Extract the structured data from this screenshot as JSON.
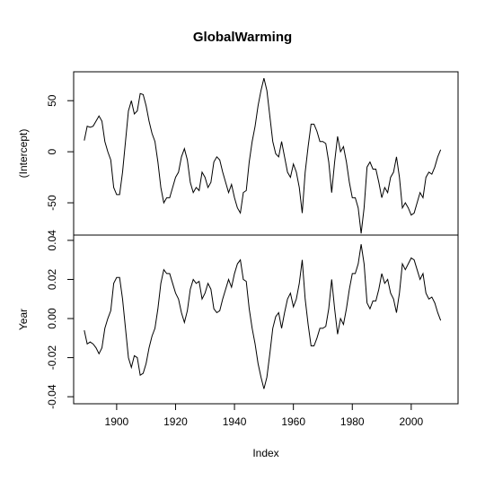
{
  "chart_data": {
    "type": "line",
    "title": "GlobalWarming",
    "x_label": "Index",
    "x": [
      1889,
      1890,
      1891,
      1892,
      1893,
      1894,
      1895,
      1896,
      1897,
      1898,
      1899,
      1900,
      1901,
      1902,
      1903,
      1904,
      1905,
      1906,
      1907,
      1908,
      1909,
      1910,
      1911,
      1912,
      1913,
      1914,
      1915,
      1916,
      1917,
      1918,
      1919,
      1920,
      1921,
      1922,
      1923,
      1924,
      1925,
      1926,
      1927,
      1928,
      1929,
      1930,
      1931,
      1932,
      1933,
      1934,
      1935,
      1936,
      1937,
      1938,
      1939,
      1940,
      1941,
      1942,
      1943,
      1944,
      1945,
      1946,
      1947,
      1948,
      1949,
      1950,
      1951,
      1952,
      1953,
      1954,
      1955,
      1956,
      1957,
      1958,
      1959,
      1960,
      1961,
      1962,
      1963,
      1964,
      1965,
      1966,
      1967,
      1968,
      1969,
      1970,
      1971,
      1972,
      1973,
      1974,
      1975,
      1976,
      1977,
      1978,
      1979,
      1980,
      1981,
      1982,
      1983,
      1984,
      1985,
      1986,
      1987,
      1988,
      1989,
      1990,
      1991,
      1992,
      1993,
      1994,
      1995,
      1996,
      1997,
      1998,
      1999,
      2000,
      2001,
      2002,
      2003,
      2004,
      2005,
      2006,
      2007,
      2008,
      2009,
      2010
    ],
    "xlim": [
      1885.4,
      2015.9
    ],
    "xticks": [
      1900,
      1920,
      1940,
      1960,
      1980,
      2000
    ],
    "color": "#000000",
    "panels": [
      {
        "y_label": "(Intercept)",
        "ylim": [
          -81.6,
          78.3
        ],
        "yticks": [
          -50,
          0,
          50
        ],
        "values": [
          11,
          25,
          24,
          25,
          30,
          35,
          30,
          10,
          0,
          -8,
          -35,
          -42,
          -42,
          -20,
          10,
          40,
          50,
          37,
          40,
          57,
          56,
          45,
          30,
          18,
          10,
          -10,
          -35,
          -50,
          -45,
          -45,
          -35,
          -25,
          -20,
          -5,
          3,
          -8,
          -30,
          -40,
          -35,
          -38,
          -20,
          -25,
          -35,
          -30,
          -10,
          -5,
          -8,
          -20,
          -30,
          -40,
          -32,
          -45,
          -55,
          -60,
          -40,
          -38,
          -10,
          10,
          25,
          45,
          60,
          72,
          60,
          35,
          10,
          -2,
          -5,
          10,
          -5,
          -20,
          -25,
          -12,
          -20,
          -35,
          -60,
          -20,
          5,
          27,
          27,
          20,
          10,
          10,
          8,
          -10,
          -40,
          -10,
          15,
          0,
          5,
          -10,
          -30,
          -45,
          -45,
          -55,
          -80,
          -55,
          -15,
          -10,
          -17,
          -17,
          -30,
          -45,
          -35,
          -40,
          -25,
          -20,
          -5,
          -25,
          -55,
          -50,
          -55,
          -62,
          -60,
          -50,
          -40,
          -45,
          -25,
          -20,
          -22,
          -15,
          -5,
          2
        ]
      },
      {
        "y_label": "Year",
        "ylim": [
          -0.0436,
          0.0427
        ],
        "yticks": [
          -0.04,
          -0.02,
          {
            "value": 0,
            "label": "0.00"
          },
          0.02,
          0.04
        ],
        "values": [
          -0.006,
          -0.013,
          -0.012,
          -0.013,
          -0.015,
          -0.018,
          -0.015,
          -0.005,
          0,
          0.004,
          0.018,
          0.021,
          0.021,
          0.01,
          -0.005,
          -0.02,
          -0.025,
          -0.019,
          -0.02,
          -0.029,
          -0.028,
          -0.023,
          -0.015,
          -0.009,
          -0.005,
          0.005,
          0.018,
          0.025,
          0.023,
          0.023,
          0.018,
          0.013,
          0.01,
          0.003,
          -0.002,
          0.004,
          0.015,
          0.02,
          0.018,
          0.019,
          0.01,
          0.013,
          0.018,
          0.015,
          0.005,
          0.003,
          0.004,
          0.01,
          0.015,
          0.02,
          0.016,
          0.023,
          0.028,
          0.03,
          0.02,
          0.019,
          0.005,
          -0.005,
          -0.013,
          -0.023,
          -0.03,
          -0.036,
          -0.03,
          -0.018,
          -0.005,
          0.001,
          0.003,
          -0.005,
          0.003,
          0.01,
          0.013,
          0.006,
          0.01,
          0.018,
          0.03,
          0.01,
          -0.003,
          -0.014,
          -0.014,
          -0.01,
          -0.005,
          -0.005,
          -0.004,
          0.005,
          0.02,
          0.005,
          -0.008,
          0,
          -0.003,
          0.005,
          0.015,
          0.023,
          0.023,
          0.028,
          0.038,
          0.028,
          0.008,
          0.005,
          0.009,
          0.009,
          0.015,
          0.023,
          0.018,
          0.02,
          0.013,
          0.01,
          0.003,
          0.013,
          0.028,
          0.025,
          0.028,
          0.031,
          0.03,
          0.025,
          0.02,
          0.023,
          0.013,
          0.01,
          0.011,
          0.008,
          0.003,
          -0.001
        ]
      }
    ]
  }
}
